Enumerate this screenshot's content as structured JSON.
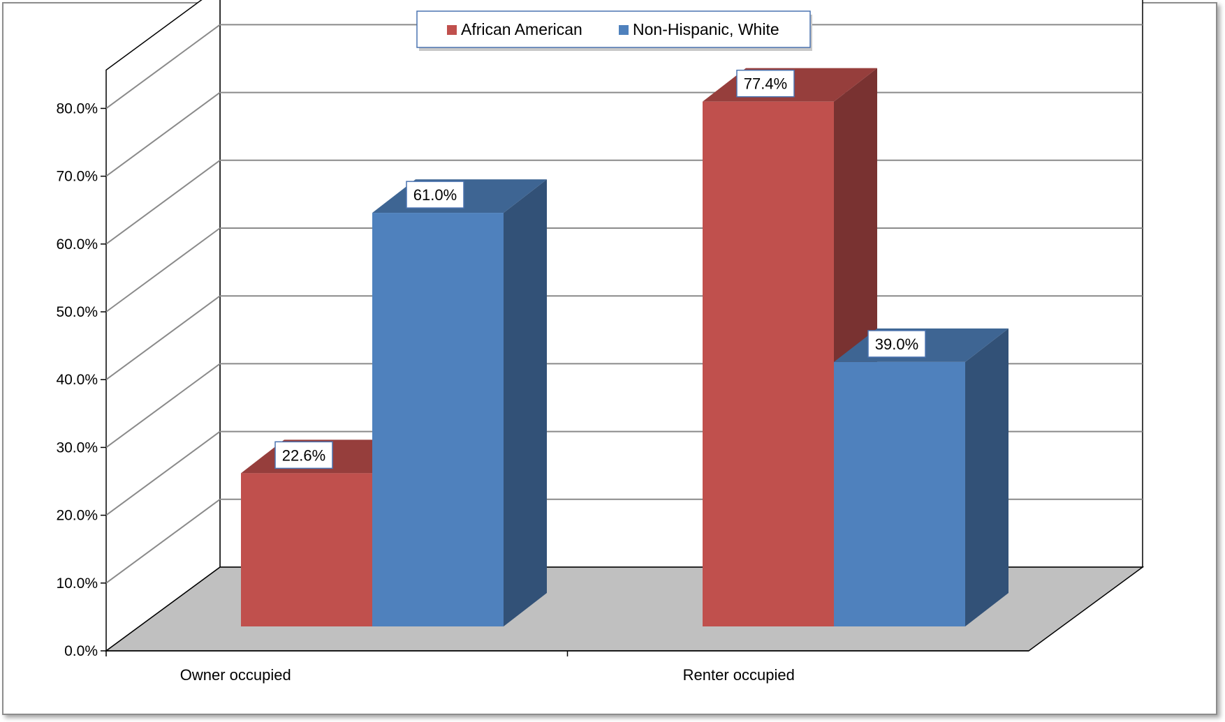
{
  "chart_data": {
    "type": "bar",
    "categories": [
      "Owner occupied",
      "Renter occupied"
    ],
    "series": [
      {
        "name": "African American",
        "values": [
          22.6,
          77.4
        ],
        "labels": [
          "22.6%",
          "77.4%"
        ],
        "color": "#C0504D"
      },
      {
        "name": "Non-Hispanic, White",
        "values": [
          61.0,
          39.0
        ],
        "labels": [
          "61.0%",
          "39.0%"
        ],
        "color": "#4F81BD"
      }
    ],
    "ylim": [
      0,
      80
    ],
    "yticks": [
      "0.0%",
      "10.0%",
      "20.0%",
      "30.0%",
      "40.0%",
      "50.0%",
      "60.0%",
      "70.0%",
      "80.0%"
    ],
    "legend": "top-center",
    "grid": true,
    "style": "3d-clustered-column"
  }
}
